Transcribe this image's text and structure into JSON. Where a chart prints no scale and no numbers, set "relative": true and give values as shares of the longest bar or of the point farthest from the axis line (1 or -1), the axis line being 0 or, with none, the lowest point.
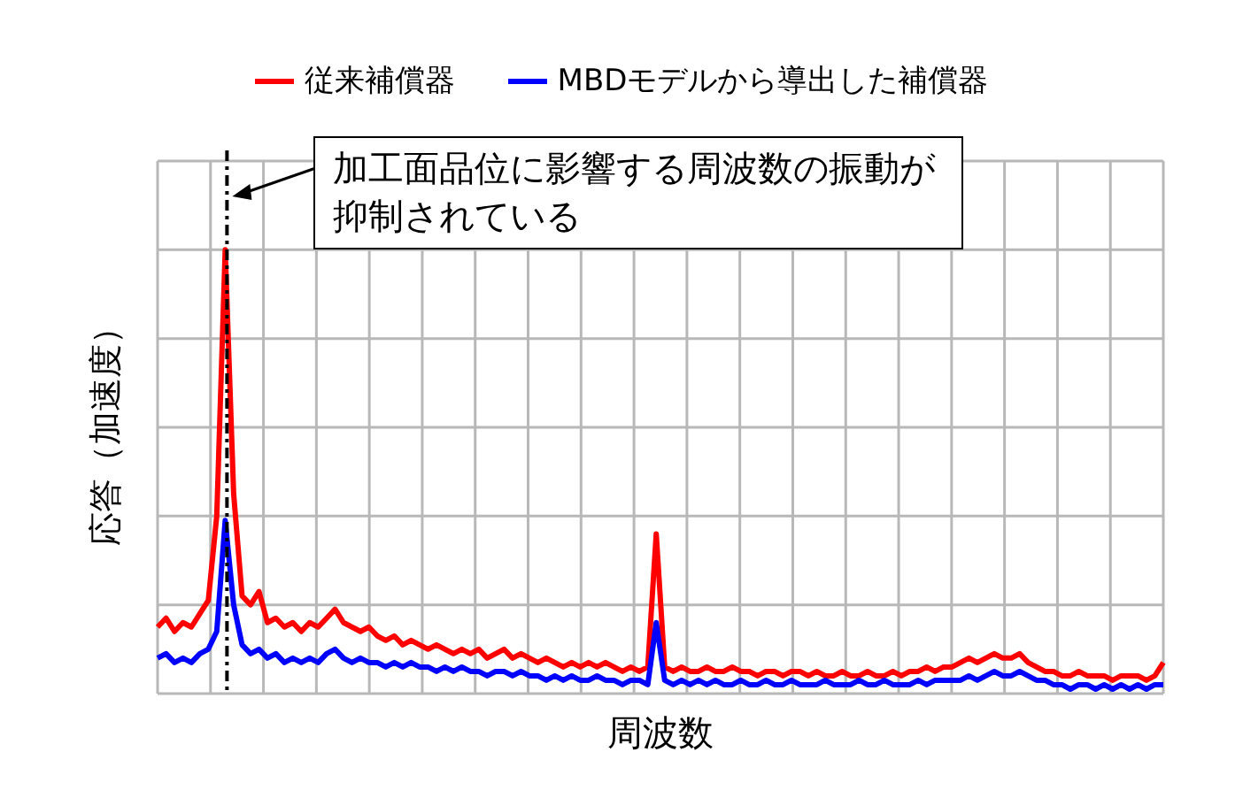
{
  "chart_data": {
    "type": "line",
    "relative": true,
    "xlabel": "周波数",
    "ylabel": "応答（加速度）",
    "legend": "top",
    "grid": true,
    "marker": "none",
    "line_style": "solid",
    "annotations": [
      "加工面品位に影響する周波数の振動が抑制されている"
    ],
    "categories": [
      null,
      null,
      null,
      null,
      null,
      null,
      null,
      null,
      null,
      null,
      null,
      null,
      null,
      null,
      null,
      null,
      null,
      null,
      null,
      null,
      null,
      null,
      null,
      null,
      null,
      null,
      null,
      null,
      null,
      null,
      null,
      null,
      null,
      null,
      null,
      null,
      null,
      null,
      null,
      null,
      null,
      null,
      null,
      null,
      null,
      null,
      null,
      null,
      null,
      null,
      null,
      null,
      null,
      null,
      null,
      null,
      null,
      null,
      null,
      null,
      null,
      null,
      null,
      null,
      null,
      null,
      null,
      null,
      null,
      null,
      null,
      null,
      null,
      null,
      null,
      null,
      null,
      null,
      null,
      null,
      null,
      null,
      null,
      null,
      null,
      null,
      null,
      null,
      null,
      null,
      null,
      null,
      null,
      null,
      null,
      null,
      null,
      null,
      null,
      null,
      null,
      null,
      null,
      null,
      null,
      null,
      null,
      null,
      null,
      null,
      null,
      null,
      null,
      null,
      null,
      null,
      null,
      null,
      null,
      null
    ],
    "series": [
      {
        "name": "従来補償器",
        "color": "#ff0000",
        "values": [
          0.15,
          0.17,
          0.14,
          0.16,
          0.15,
          0.18,
          0.21,
          0.4,
          1,
          0.45,
          0.22,
          0.2,
          0.23,
          0.16,
          0.17,
          0.15,
          0.16,
          0.14,
          0.16,
          0.15,
          0.17,
          0.19,
          0.16,
          0.15,
          0.14,
          0.15,
          0.13,
          0.12,
          0.13,
          0.11,
          0.12,
          0.11,
          0.1,
          0.11,
          0.1,
          0.09,
          0.1,
          0.09,
          0.1,
          0.08,
          0.09,
          0.1,
          0.08,
          0.09,
          0.08,
          0.07,
          0.08,
          0.07,
          0.06,
          0.07,
          0.06,
          0.07,
          0.06,
          0.07,
          0.06,
          0.05,
          0.06,
          0.05,
          0.06,
          0.36,
          0.06,
          0.05,
          0.06,
          0.05,
          0.05,
          0.06,
          0.05,
          0.05,
          0.06,
          0.05,
          0.05,
          0.04,
          0.05,
          0.05,
          0.04,
          0.05,
          0.05,
          0.04,
          0.05,
          0.04,
          0.04,
          0.05,
          0.04,
          0.04,
          0.05,
          0.04,
          0.04,
          0.05,
          0.04,
          0.05,
          0.05,
          0.06,
          0.05,
          0.06,
          0.06,
          0.07,
          0.08,
          0.07,
          0.08,
          0.09,
          0.08,
          0.08,
          0.09,
          0.07,
          0.06,
          0.05,
          0.05,
          0.04,
          0.04,
          0.05,
          0.04,
          0.04,
          0.04,
          0.03,
          0.04,
          0.04,
          0.04,
          0.03,
          0.04,
          0.07
        ]
      },
      {
        "name": "MBDモデルから導出した補償器",
        "color": "#0000ff",
        "values": [
          0.08,
          0.09,
          0.07,
          0.08,
          0.07,
          0.09,
          0.1,
          0.14,
          0.39,
          0.2,
          0.11,
          0.09,
          0.1,
          0.08,
          0.09,
          0.07,
          0.08,
          0.07,
          0.08,
          0.07,
          0.09,
          0.1,
          0.08,
          0.07,
          0.08,
          0.07,
          0.07,
          0.06,
          0.07,
          0.06,
          0.07,
          0.06,
          0.06,
          0.05,
          0.06,
          0.05,
          0.06,
          0.05,
          0.05,
          0.04,
          0.05,
          0.05,
          0.04,
          0.05,
          0.04,
          0.04,
          0.03,
          0.04,
          0.03,
          0.04,
          0.03,
          0.03,
          0.04,
          0.03,
          0.03,
          0.02,
          0.03,
          0.03,
          0.02,
          0.16,
          0.03,
          0.02,
          0.03,
          0.02,
          0.03,
          0.02,
          0.03,
          0.02,
          0.02,
          0.03,
          0.02,
          0.02,
          0.03,
          0.02,
          0.02,
          0.03,
          0.02,
          0.02,
          0.02,
          0.03,
          0.02,
          0.02,
          0.02,
          0.03,
          0.02,
          0.02,
          0.03,
          0.02,
          0.02,
          0.02,
          0.03,
          0.02,
          0.03,
          0.03,
          0.03,
          0.03,
          0.04,
          0.03,
          0.04,
          0.05,
          0.04,
          0.04,
          0.05,
          0.04,
          0.03,
          0.03,
          0.02,
          0.02,
          0.01,
          0.02,
          0.02,
          0.01,
          0.02,
          0.01,
          0.02,
          0.01,
          0.02,
          0.01,
          0.02,
          0.02
        ]
      }
    ]
  }
}
